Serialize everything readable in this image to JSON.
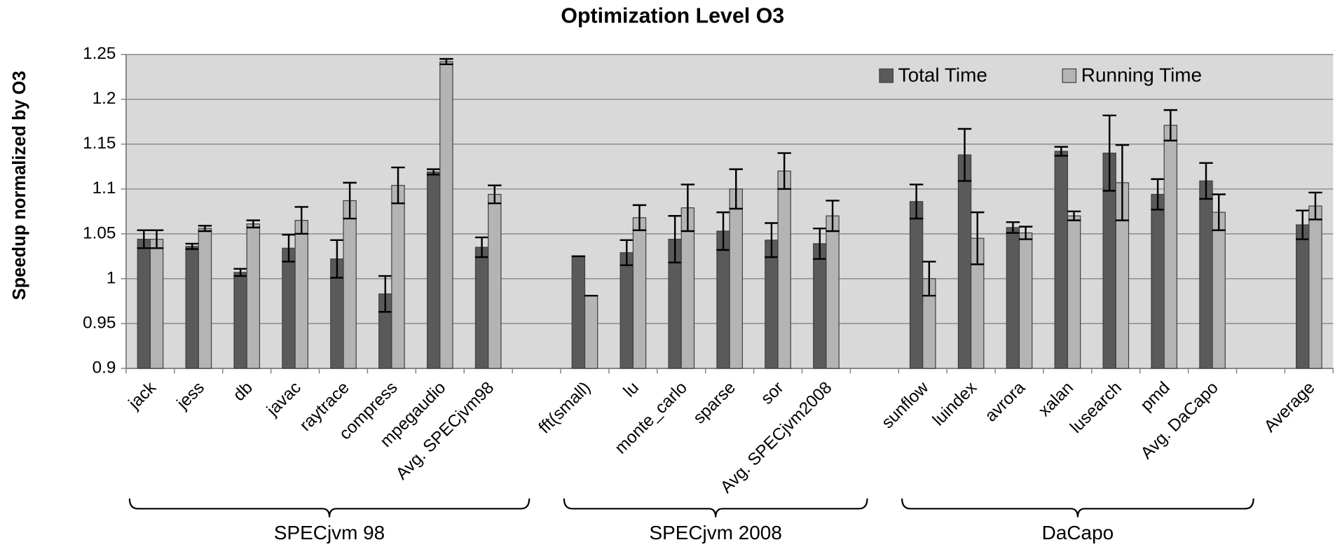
{
  "chart_data": {
    "type": "bar",
    "title": "Optimization Level O3",
    "y_label": "Speedup normalized by O3",
    "categories": [
      "jack",
      "jess",
      "db",
      "javac",
      "raytrace",
      "compress",
      "mpegaudio",
      "Avg. SPECjvm98",
      null,
      "fft(small)",
      "lu",
      "monte_carlo",
      "sparse",
      "sor",
      "Avg. SPECjvm2008",
      null,
      "sunflow",
      "luindex",
      "avrora",
      "xalan",
      "lusearch",
      "pmd",
      "Avg. DaCapo",
      null,
      "Average"
    ],
    "series": [
      {
        "name": "Total Time",
        "color": "#5a5a5a",
        "values": [
          1.044,
          1.036,
          1.007,
          1.034,
          1.022,
          0.983,
          1.119,
          1.035,
          null,
          1.025,
          1.029,
          1.044,
          1.053,
          1.043,
          1.039,
          null,
          1.086,
          1.138,
          1.057,
          1.142,
          1.14,
          1.094,
          1.109,
          null,
          1.06
        ],
        "errors": [
          0.01,
          0.003,
          0.004,
          0.015,
          0.021,
          0.02,
          0.003,
          0.011,
          null,
          0,
          0.014,
          0.026,
          0.021,
          0.019,
          0.017,
          null,
          0.019,
          0.029,
          0.006,
          0.005,
          0.042,
          0.017,
          0.02,
          null,
          0.016
        ]
      },
      {
        "name": "Running Time",
        "color": "#b4b4b4",
        "values": [
          1.044,
          1.056,
          1.061,
          1.065,
          1.087,
          1.104,
          1.242,
          1.094,
          null,
          0.981,
          1.068,
          1.079,
          1.1,
          1.12,
          1.07,
          null,
          1.0,
          1.045,
          1.051,
          1.07,
          1.107,
          1.171,
          1.074,
          null,
          1.081
        ],
        "errors": [
          0.01,
          0.003,
          0.004,
          0.015,
          0.02,
          0.02,
          0.003,
          0.01,
          null,
          0,
          0.014,
          0.026,
          0.022,
          0.02,
          0.017,
          null,
          0.019,
          0.029,
          0.007,
          0.005,
          0.042,
          0.017,
          0.02,
          null,
          0.015
        ]
      }
    ],
    "ylim": [
      0.9,
      1.25
    ],
    "yticks": [
      {
        "value": 0.9,
        "label": "0.9"
      },
      0.95,
      {
        "value": 1,
        "label": "1"
      },
      1.05,
      {
        "value": 1.1,
        "label": "1.1"
      },
      1.15,
      {
        "value": 1.2,
        "label": "1.2"
      },
      1.25
    ],
    "grid": true,
    "legend": "top-right",
    "groups": [
      {
        "label": "SPECjvm 98",
        "first": "jack",
        "last": "Avg. SPECjvm98"
      },
      {
        "label": "SPECjvm 2008",
        "first": "fft(small)",
        "last": "Avg. SPECjvm2008"
      },
      {
        "label": "DaCapo",
        "first": "sunflow",
        "last": "Avg. DaCapo"
      }
    ]
  }
}
